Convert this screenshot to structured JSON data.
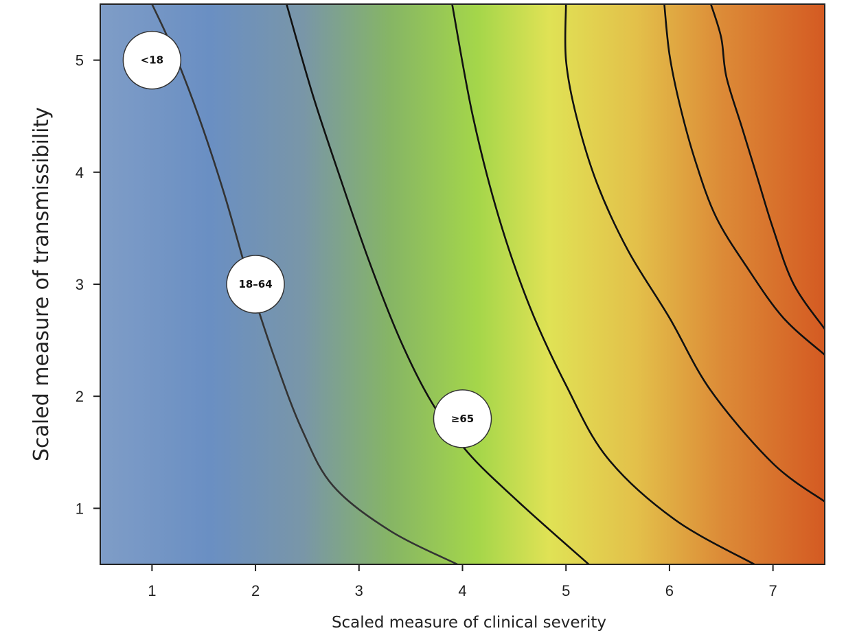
{
  "chart_data": {
    "type": "heatmap",
    "xlabel": "Scaled measure of clinical severity",
    "ylabel": "Scaled measure of transmissibility",
    "xlim": [
      0.5,
      7.5
    ],
    "ylim": [
      0.5,
      5.5
    ],
    "xticks": [
      1,
      2,
      3,
      4,
      5,
      6,
      7
    ],
    "yticks": [
      1,
      2,
      3,
      4,
      5
    ],
    "grid": false,
    "legend": "none",
    "color_scale": [
      "#7f9dc7",
      "#5d85c0",
      "#7fa77d",
      "#a4d64a",
      "#e6e455",
      "#dd9a3a",
      "#d45a22"
    ],
    "contours": [
      {
        "x": [
          3.95,
          3.3,
          2.75,
          2.45,
          2.2,
          1.95,
          1.7,
          1.45,
          1.2,
          1.0
        ],
        "y": [
          0.5,
          0.8,
          1.2,
          1.7,
          2.3,
          3.0,
          3.8,
          4.5,
          5.1,
          5.5
        ]
      },
      {
        "x": [
          5.22,
          4.55,
          4.05,
          3.7,
          3.4,
          3.1,
          2.8,
          2.55,
          2.3
        ],
        "y": [
          0.5,
          1.05,
          1.5,
          1.95,
          2.5,
          3.2,
          4.0,
          4.7,
          5.5
        ]
      },
      {
        "x": [
          6.82,
          6.05,
          5.4,
          5.0,
          4.65,
          4.35,
          4.1,
          3.9
        ],
        "y": [
          0.5,
          0.9,
          1.45,
          2.1,
          2.8,
          3.6,
          4.5,
          5.5
        ]
      },
      {
        "x": [
          7.5,
          7.0,
          6.4,
          6.0,
          5.6,
          5.3,
          5.1,
          5.0,
          5.0
        ],
        "y": [
          1.06,
          1.4,
          2.05,
          2.7,
          3.3,
          3.9,
          4.5,
          5.0,
          5.5
        ]
      },
      {
        "x": [
          7.5,
          7.1,
          6.75,
          6.45,
          6.25,
          6.1,
          6.0,
          5.95
        ],
        "y": [
          2.37,
          2.7,
          3.15,
          3.6,
          4.1,
          4.6,
          5.05,
          5.5
        ]
      },
      {
        "x": [
          7.5,
          7.2,
          7.0,
          6.85,
          6.7,
          6.55,
          6.5,
          6.4
        ],
        "y": [
          2.6,
          3.0,
          3.5,
          3.95,
          4.4,
          4.85,
          5.2,
          5.5
        ]
      }
    ],
    "annotations": [
      {
        "label": "<18",
        "x": 1.0,
        "y": 5.0
      },
      {
        "label": "18–64",
        "x": 2.0,
        "y": 3.0
      },
      {
        "label": "≥65",
        "x": 4.0,
        "y": 1.8
      }
    ]
  }
}
